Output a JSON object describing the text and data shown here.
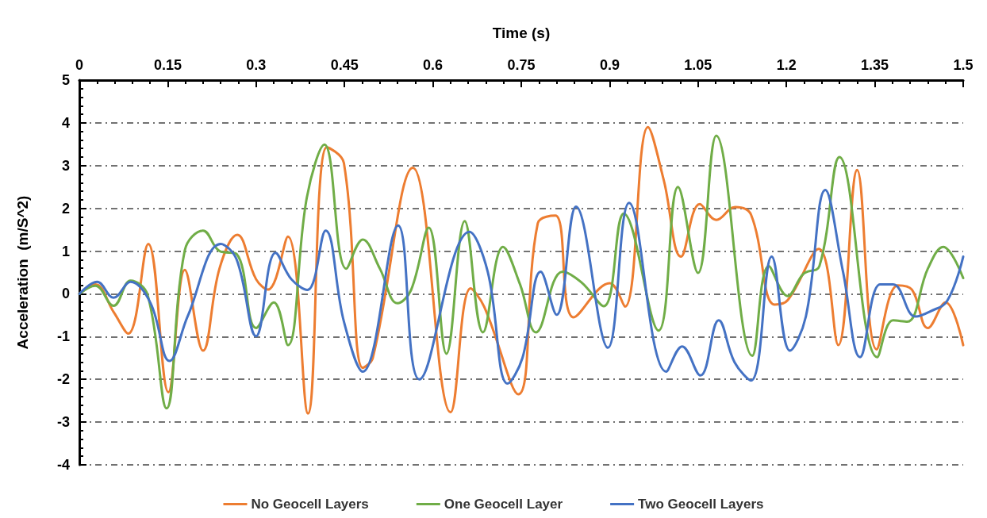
{
  "chart_data": {
    "type": "line",
    "xlabel": "Time (s)",
    "ylabel": "Acceleration  (m/S^2)",
    "xlim": [
      0,
      1.5
    ],
    "xticks": [
      0,
      0.15,
      0.3,
      0.45,
      0.6,
      0.75,
      0.9,
      1.05,
      1.2,
      1.35,
      1.5
    ],
    "ylim": [
      -4,
      5
    ],
    "yticks": [
      -4,
      -3,
      -2,
      -1,
      0,
      1,
      2,
      3,
      4,
      5
    ],
    "grid": "y",
    "legend": "bottom",
    "marker": "none",
    "line_style": "solid",
    "series": [
      {
        "name": "No Geocell Layers",
        "color": "#ed7d31",
        "x": [
          0,
          0.027,
          0.058,
          0.083,
          0.117,
          0.151,
          0.179,
          0.21,
          0.238,
          0.268,
          0.3,
          0.32,
          0.354,
          0.388,
          0.42,
          0.449,
          0.481,
          0.498,
          0.566,
          0.63,
          0.664,
          0.687,
          0.745,
          0.778,
          0.808,
          0.839,
          0.9,
          0.926,
          0.965,
          0.992,
          1.021,
          1.053,
          1.081,
          1.113,
          1.14,
          1.18,
          1.202,
          1.255,
          1.288,
          1.32,
          1.353,
          1.389,
          1.413,
          1.44,
          1.47,
          1.5
        ],
        "values": [
          0,
          0.22,
          -0.42,
          -0.93,
          1.17,
          -2.3,
          0.56,
          -1.33,
          0.6,
          1.38,
          0.34,
          0.1,
          1.34,
          -2.8,
          3.43,
          3.06,
          -1.73,
          -1.5,
          2.95,
          -2.77,
          0.13,
          -0.3,
          -2.35,
          1.65,
          1.83,
          -0.55,
          0.25,
          -0.3,
          3.9,
          2.65,
          0.87,
          2.1,
          1.73,
          2.03,
          1.85,
          -0.25,
          -0.15,
          1.05,
          -1.2,
          2.9,
          -1.3,
          0.2,
          0.1,
          -0.8,
          -0.2,
          -1.2
        ]
      },
      {
        "name": "One Geocell Layer",
        "color": "#70ad47",
        "x": [
          0,
          0.027,
          0.058,
          0.087,
          0.116,
          0.148,
          0.179,
          0.21,
          0.238,
          0.267,
          0.3,
          0.33,
          0.354,
          0.386,
          0.416,
          0.453,
          0.481,
          0.51,
          0.54,
          0.563,
          0.593,
          0.623,
          0.654,
          0.685,
          0.719,
          0.748,
          0.775,
          0.82,
          0.852,
          0.89,
          0.924,
          0.983,
          1.016,
          1.05,
          1.081,
          1.142,
          1.17,
          1.202,
          1.229,
          1.256,
          1.29,
          1.354,
          1.381,
          1.405,
          1.44,
          1.466,
          1.5
        ],
        "values": [
          0,
          0.19,
          -0.28,
          0.31,
          -0.03,
          -2.68,
          1.02,
          1.48,
          1.0,
          0.93,
          -0.8,
          -0.2,
          -1.2,
          2.25,
          3.49,
          0.59,
          1.27,
          0.59,
          -0.22,
          0.09,
          1.55,
          -1.4,
          1.7,
          -0.9,
          1.1,
          0.22,
          -0.9,
          0.52,
          0.27,
          -0.29,
          1.88,
          -0.86,
          2.5,
          0.49,
          3.7,
          -1.45,
          0.65,
          -0.05,
          0.47,
          0.65,
          3.2,
          -1.48,
          -0.62,
          -0.65,
          0.59,
          1.1,
          0.37
        ]
      },
      {
        "name": "Two Geocell Layers",
        "color": "#4472c4",
        "x": [
          0,
          0.03,
          0.058,
          0.087,
          0.121,
          0.153,
          0.184,
          0.24,
          0.267,
          0.3,
          0.333,
          0.36,
          0.387,
          0.418,
          0.449,
          0.481,
          0.541,
          0.577,
          0.662,
          0.693,
          0.727,
          0.752,
          0.783,
          0.81,
          0.843,
          0.897,
          0.933,
          0.996,
          1.023,
          1.054,
          1.085,
          1.112,
          1.14,
          1.175,
          1.206,
          1.233,
          1.266,
          1.296,
          1.325,
          1.359,
          1.381,
          1.419,
          1.444,
          1.473,
          1.5
        ],
        "values": [
          0,
          0.28,
          -0.09,
          0.28,
          -0.22,
          -1.57,
          -0.52,
          1.17,
          0.8,
          -0.99,
          0.96,
          0.34,
          0.09,
          1.48,
          -0.65,
          -1.82,
          1.6,
          -2.0,
          1.45,
          0.52,
          -2.1,
          -1.5,
          0.52,
          -0.49,
          2.04,
          -1.26,
          2.13,
          -1.82,
          -1.23,
          -1.91,
          -0.62,
          -1.6,
          -2.03,
          0.87,
          -1.33,
          -0.53,
          2.43,
          0.52,
          -1.48,
          0.22,
          0.22,
          -0.53,
          -0.41,
          -0.16,
          0.87
        ]
      }
    ]
  }
}
